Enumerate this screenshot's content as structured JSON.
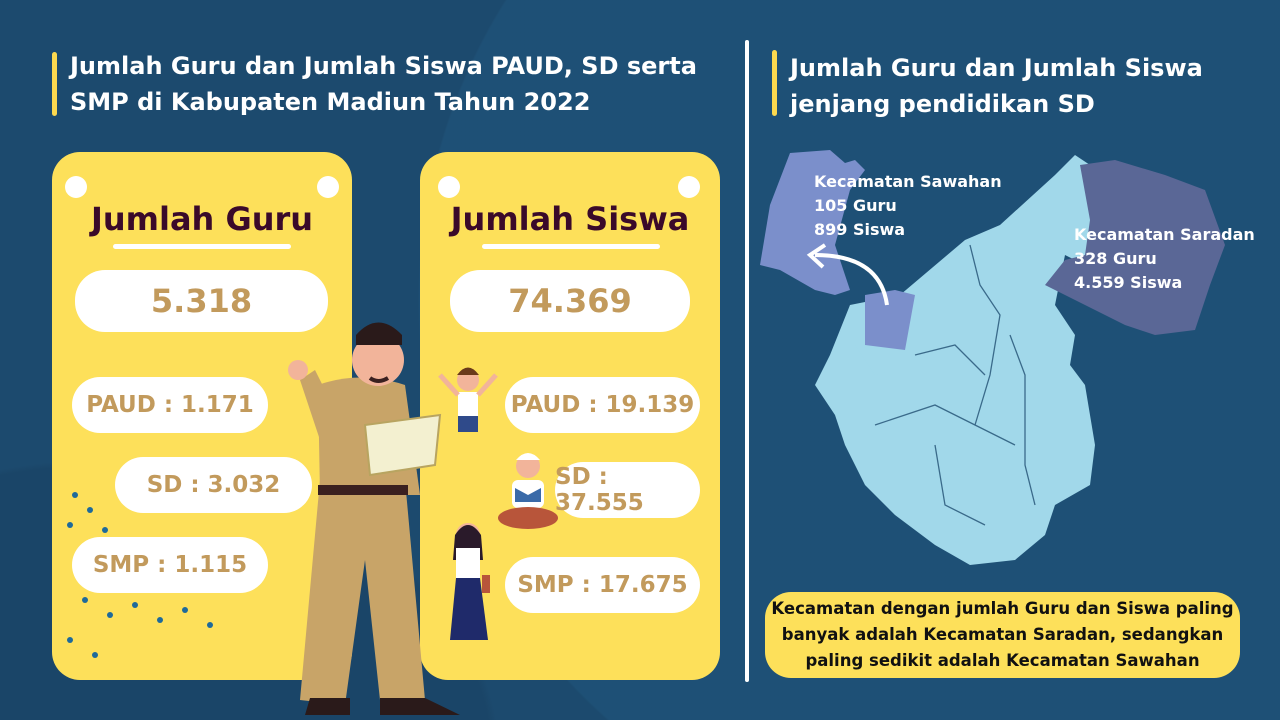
{
  "left_title": "Jumlah Guru dan Jumlah Siswa PAUD, SD serta SMP di Kabupaten Madiun Tahun 2022",
  "guru": {
    "title": "Jumlah Guru",
    "total": "5.318",
    "paud": "PAUD : 1.171",
    "sd": "SD : 3.032",
    "smp": "SMP : 1.115"
  },
  "siswa": {
    "title": "Jumlah Siswa",
    "total": "74.369",
    "paud": "PAUD : 19.139",
    "sd": "SD : 37.555",
    "smp": "SMP : 17.675"
  },
  "right_title": "Jumlah Guru dan Jumlah Siswa jenjang pendidikan SD",
  "map": {
    "sawahan": {
      "name": "Kecamatan Sawahan",
      "guru": "105 Guru",
      "siswa": "899 Siswa",
      "color": "#7b8fcb"
    },
    "saradan": {
      "name": "Kecamatan Saradan",
      "guru": "328 Guru",
      "siswa": "4.559 Siswa",
      "color": "#5a6796"
    },
    "base_color": "#a1d8ea"
  },
  "summary": "Kecamatan dengan jumlah Guru dan Siswa paling banyak adalah Kecamatan Saradan, sedangkan paling sedikit adalah Kecamatan Sawahan",
  "colors": {
    "background": "#1c4a6e",
    "card": "#fde05a",
    "accent": "#fcd94f",
    "value": "#c29a5c",
    "card_title": "#3a0a2a"
  }
}
